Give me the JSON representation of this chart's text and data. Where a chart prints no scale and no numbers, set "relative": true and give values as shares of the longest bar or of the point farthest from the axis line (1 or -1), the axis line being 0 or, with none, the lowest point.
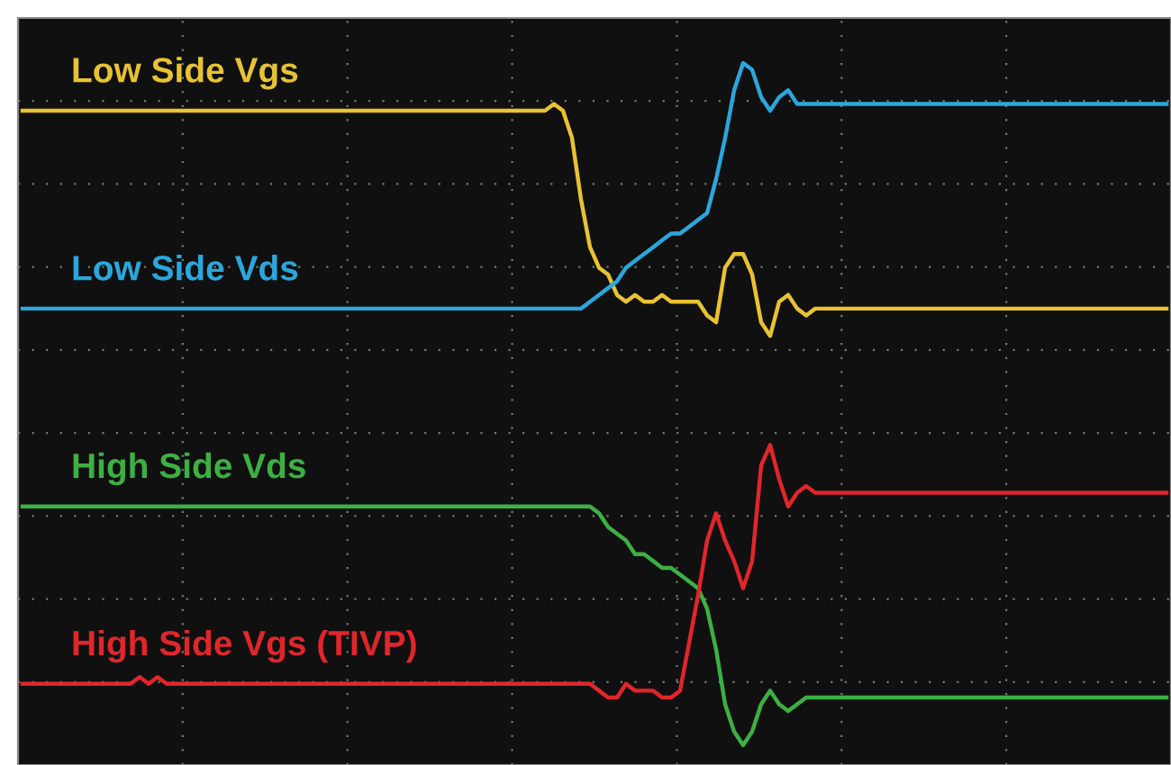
{
  "chart_data": {
    "type": "line",
    "relative": true,
    "grid": true,
    "line_style": "solid",
    "categories": [
      null,
      null,
      null,
      null,
      null,
      null,
      null,
      null,
      null,
      null,
      null,
      null,
      null,
      null,
      null,
      null,
      null,
      null,
      null,
      null,
      null,
      null,
      null,
      null,
      null,
      null,
      null,
      null,
      null,
      null,
      null,
      null,
      null,
      null,
      null,
      null,
      null,
      null,
      null,
      null,
      null,
      null,
      null,
      null,
      null,
      null,
      null,
      null,
      null,
      null,
      null,
      null,
      null,
      null,
      null,
      null,
      null,
      null,
      null,
      null,
      null,
      null,
      null,
      null,
      null,
      null,
      null,
      null,
      null,
      null,
      null,
      null,
      null,
      null,
      null,
      null,
      null,
      null,
      null,
      null,
      null,
      null,
      null,
      null,
      null,
      null,
      null,
      null,
      null,
      null,
      null,
      null,
      null,
      null,
      null,
      null,
      null,
      null,
      null,
      null,
      null,
      null,
      null,
      null,
      null,
      null,
      null,
      null,
      null,
      null,
      null,
      null,
      null,
      null,
      null,
      null,
      null,
      null,
      null,
      null,
      null,
      null,
      null,
      null,
      null,
      null,
      null,
      null
    ],
    "series": [
      {
        "name": "Low Side Vgs",
        "color": "#e8c233",
        "values": [
          0.93,
          0.93,
          0.93,
          0.93,
          0.93,
          0.93,
          0.93,
          0.93,
          0.93,
          0.93,
          0.93,
          0.93,
          0.93,
          0.93,
          0.93,
          0.93,
          0.93,
          0.93,
          0.93,
          0.93,
          0.93,
          0.93,
          0.93,
          0.93,
          0.93,
          0.93,
          0.93,
          0.93,
          0.93,
          0.93,
          0.93,
          0.93,
          0.93,
          0.93,
          0.93,
          0.93,
          0.93,
          0.93,
          0.93,
          0.93,
          0.93,
          0.93,
          0.93,
          0.93,
          0.93,
          0.93,
          0.93,
          0.93,
          0.93,
          0.93,
          0.93,
          0.93,
          0.93,
          0.93,
          0.93,
          0.93,
          0.93,
          0.93,
          0.93,
          0.94,
          0.93,
          0.89,
          0.8,
          0.73,
          0.7,
          0.69,
          0.66,
          0.65,
          0.66,
          0.65,
          0.65,
          0.66,
          0.65,
          0.65,
          0.65,
          0.65,
          0.63,
          0.62,
          0.7,
          0.72,
          0.72,
          0.69,
          0.62,
          0.6,
          0.65,
          0.66,
          0.64,
          0.63,
          0.64,
          0.64,
          0.64,
          0.64,
          0.64,
          0.64,
          0.64,
          0.64,
          0.64,
          0.64,
          0.64,
          0.64,
          0.64,
          0.64,
          0.64,
          0.64,
          0.64,
          0.64,
          0.64,
          0.64,
          0.64,
          0.64,
          0.64,
          0.64,
          0.64,
          0.64,
          0.64,
          0.64,
          0.64,
          0.64,
          0.64,
          0.64,
          0.64,
          0.64,
          0.64,
          0.64,
          0.64,
          0.64,
          0.64,
          0.64
        ]
      },
      {
        "name": "Low Side Vds",
        "color": "#2aa7dc",
        "values": [
          0.64,
          0.64,
          0.64,
          0.64,
          0.64,
          0.64,
          0.64,
          0.64,
          0.64,
          0.64,
          0.64,
          0.64,
          0.64,
          0.64,
          0.64,
          0.64,
          0.64,
          0.64,
          0.64,
          0.64,
          0.64,
          0.64,
          0.64,
          0.64,
          0.64,
          0.64,
          0.64,
          0.64,
          0.64,
          0.64,
          0.64,
          0.64,
          0.64,
          0.64,
          0.64,
          0.64,
          0.64,
          0.64,
          0.64,
          0.64,
          0.64,
          0.64,
          0.64,
          0.64,
          0.64,
          0.64,
          0.64,
          0.64,
          0.64,
          0.64,
          0.64,
          0.64,
          0.64,
          0.64,
          0.64,
          0.64,
          0.64,
          0.64,
          0.64,
          0.64,
          0.64,
          0.64,
          0.64,
          0.65,
          0.66,
          0.67,
          0.68,
          0.7,
          0.71,
          0.72,
          0.73,
          0.74,
          0.75,
          0.75,
          0.76,
          0.77,
          0.78,
          0.83,
          0.89,
          0.96,
          1.0,
          0.99,
          0.95,
          0.93,
          0.95,
          0.96,
          0.94,
          0.94,
          0.94,
          0.94,
          0.94,
          0.94,
          0.94,
          0.94,
          0.94,
          0.94,
          0.94,
          0.94,
          0.94,
          0.94,
          0.94,
          0.94,
          0.94,
          0.94,
          0.94,
          0.94,
          0.94,
          0.94,
          0.94,
          0.94,
          0.94,
          0.94,
          0.94,
          0.94,
          0.94,
          0.94,
          0.94,
          0.94,
          0.94,
          0.94,
          0.94,
          0.94,
          0.94,
          0.94,
          0.94,
          0.94,
          0.94,
          0.94
        ]
      },
      {
        "name": "High Side Vds",
        "color": "#3cb043",
        "values": [
          0.35,
          0.35,
          0.35,
          0.35,
          0.35,
          0.35,
          0.35,
          0.35,
          0.35,
          0.35,
          0.35,
          0.35,
          0.35,
          0.35,
          0.35,
          0.35,
          0.35,
          0.35,
          0.35,
          0.35,
          0.35,
          0.35,
          0.35,
          0.35,
          0.35,
          0.35,
          0.35,
          0.35,
          0.35,
          0.35,
          0.35,
          0.35,
          0.35,
          0.35,
          0.35,
          0.35,
          0.35,
          0.35,
          0.35,
          0.35,
          0.35,
          0.35,
          0.35,
          0.35,
          0.35,
          0.35,
          0.35,
          0.35,
          0.35,
          0.35,
          0.35,
          0.35,
          0.35,
          0.35,
          0.35,
          0.35,
          0.35,
          0.35,
          0.35,
          0.35,
          0.35,
          0.35,
          0.35,
          0.35,
          0.34,
          0.32,
          0.31,
          0.3,
          0.28,
          0.28,
          0.27,
          0.26,
          0.26,
          0.25,
          0.24,
          0.23,
          0.2,
          0.14,
          0.06,
          0.02,
          0.0,
          0.02,
          0.06,
          0.08,
          0.06,
          0.05,
          0.06,
          0.07,
          0.07,
          0.07,
          0.07,
          0.07,
          0.07,
          0.07,
          0.07,
          0.07,
          0.07,
          0.07,
          0.07,
          0.07,
          0.07,
          0.07,
          0.07,
          0.07,
          0.07,
          0.07,
          0.07,
          0.07,
          0.07,
          0.07,
          0.07,
          0.07,
          0.07,
          0.07,
          0.07,
          0.07,
          0.07,
          0.07,
          0.07,
          0.07,
          0.07,
          0.07,
          0.07,
          0.07,
          0.07,
          0.07,
          0.07,
          0.07
        ]
      },
      {
        "name": "High Side Vgs (TIVP)",
        "color": "#e0262b",
        "values": [
          0.09,
          0.09,
          0.09,
          0.09,
          0.09,
          0.09,
          0.09,
          0.09,
          0.09,
          0.09,
          0.09,
          0.09,
          0.09,
          0.1,
          0.09,
          0.1,
          0.09,
          0.09,
          0.09,
          0.09,
          0.09,
          0.09,
          0.09,
          0.09,
          0.09,
          0.09,
          0.09,
          0.09,
          0.09,
          0.09,
          0.09,
          0.09,
          0.09,
          0.09,
          0.09,
          0.09,
          0.09,
          0.09,
          0.09,
          0.09,
          0.09,
          0.09,
          0.09,
          0.09,
          0.09,
          0.09,
          0.09,
          0.09,
          0.09,
          0.09,
          0.09,
          0.09,
          0.09,
          0.09,
          0.09,
          0.09,
          0.09,
          0.09,
          0.09,
          0.09,
          0.09,
          0.09,
          0.09,
          0.09,
          0.08,
          0.07,
          0.07,
          0.09,
          0.08,
          0.08,
          0.08,
          0.07,
          0.07,
          0.08,
          0.15,
          0.22,
          0.3,
          0.34,
          0.3,
          0.27,
          0.23,
          0.27,
          0.41,
          0.44,
          0.39,
          0.35,
          0.37,
          0.38,
          0.37,
          0.37,
          0.37,
          0.37,
          0.37,
          0.37,
          0.37,
          0.37,
          0.37,
          0.37,
          0.37,
          0.37,
          0.37,
          0.37,
          0.37,
          0.37,
          0.37,
          0.37,
          0.37,
          0.37,
          0.37,
          0.37,
          0.37,
          0.37,
          0.37,
          0.37,
          0.37,
          0.37,
          0.37,
          0.37,
          0.37,
          0.37,
          0.37,
          0.37,
          0.37,
          0.37,
          0.37,
          0.37,
          0.37,
          0.37
        ]
      }
    ]
  }
}
